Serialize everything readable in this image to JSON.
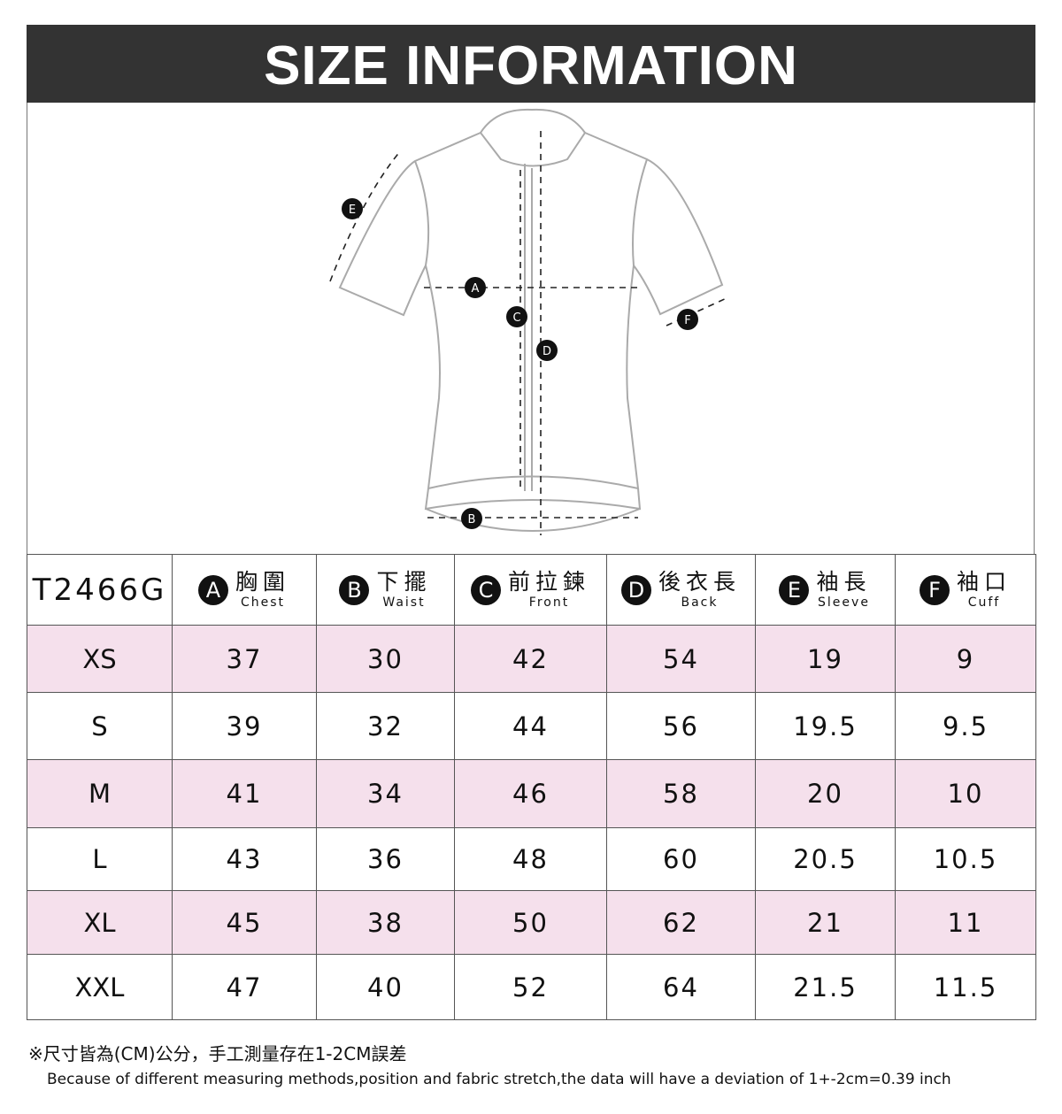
{
  "title": "SIZE INFORMATION",
  "diagram_labels": [
    "A",
    "B",
    "C",
    "D",
    "E",
    "F"
  ],
  "table": {
    "model": "T2466G",
    "columns": [
      {
        "letter": "A",
        "zh": "胸圍",
        "en": "Chest"
      },
      {
        "letter": "B",
        "zh": "下擺",
        "en": "Waist"
      },
      {
        "letter": "C",
        "zh": "前拉鍊",
        "en": "Front"
      },
      {
        "letter": "D",
        "zh": "後衣長",
        "en": "Back"
      },
      {
        "letter": "E",
        "zh": "袖長",
        "en": "Sleeve"
      },
      {
        "letter": "F",
        "zh": "袖口",
        "en": "Cuff"
      }
    ],
    "rows": [
      {
        "size": "XS",
        "values": [
          "37",
          "30",
          "42",
          "54",
          "19",
          "9"
        ]
      },
      {
        "size": "S",
        "values": [
          "39",
          "32",
          "44",
          "56",
          "19.5",
          "9.5"
        ]
      },
      {
        "size": "M",
        "values": [
          "41",
          "34",
          "46",
          "58",
          "20",
          "10"
        ]
      },
      {
        "size": "L",
        "values": [
          "43",
          "36",
          "48",
          "60",
          "20.5",
          "10.5"
        ]
      },
      {
        "size": "XL",
        "values": [
          "45",
          "38",
          "50",
          "62",
          "21",
          "11"
        ]
      },
      {
        "size": "XXL",
        "values": [
          "47",
          "40",
          "52",
          "64",
          "21.5",
          "11.5"
        ]
      }
    ]
  },
  "notes": {
    "zh": "※尺寸皆為(CM)公分，手工測量存在1-2CM誤差",
    "en": "Because of different measuring methods,position and fabric stretch,the data will have a deviation of 1+-2cm=0.39 inch"
  },
  "colors": {
    "header": "#333333",
    "row_highlight": "#f5e0ec"
  }
}
